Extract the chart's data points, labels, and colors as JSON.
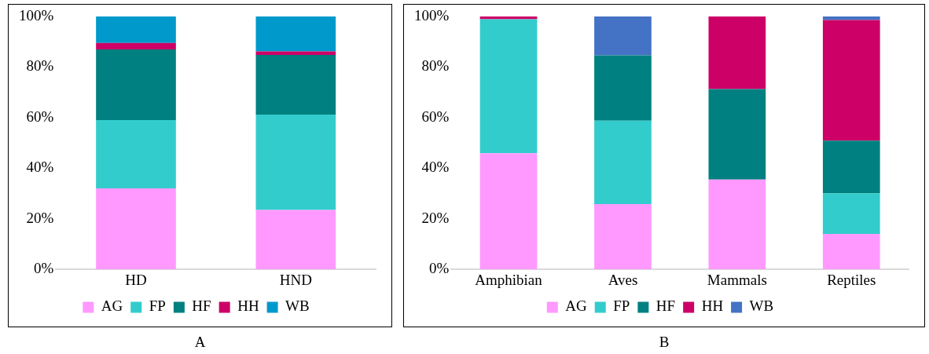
{
  "chart_data": [
    {
      "type": "bar",
      "stacked": true,
      "categories": [
        "HD",
        "HND"
      ],
      "series": [
        {
          "name": "AG",
          "color": "#ff99ff",
          "values": [
            32,
            23.5
          ]
        },
        {
          "name": "FP",
          "color": "#33cccc",
          "values": [
            27,
            37.7
          ]
        },
        {
          "name": "HF",
          "color": "#008080",
          "values": [
            28,
            23.6
          ]
        },
        {
          "name": "HH",
          "color": "#cc0066",
          "values": [
            2.5,
            1.4
          ]
        },
        {
          "name": "WB",
          "color": "#0099cc",
          "values": [
            10.5,
            13.8
          ]
        }
      ],
      "ylim": [
        0,
        100
      ],
      "yticks": [
        {
          "value": 0,
          "label": "0%"
        },
        {
          "value": 20,
          "label": "20%"
        },
        {
          "value": 40,
          "label": "40%"
        },
        {
          "value": 60,
          "label": "60%"
        },
        {
          "value": 80,
          "label": "80%"
        },
        {
          "value": 100,
          "label": "100%"
        }
      ],
      "grid": false,
      "legend": "bottom",
      "annotations": [
        "A"
      ]
    },
    {
      "type": "bar",
      "stacked": true,
      "categories": [
        "Amphibian",
        "Aves",
        "Mammals",
        "Reptiles"
      ],
      "series": [
        {
          "name": "AG",
          "color": "#ff99ff",
          "values": [
            45.9,
            25.8,
            35.5,
            14
          ]
        },
        {
          "name": "FP",
          "color": "#33cccc",
          "values": [
            53,
            33,
            0,
            16.1
          ]
        },
        {
          "name": "HF",
          "color": "#008080",
          "values": [
            0,
            25.8,
            35.8,
            20.8
          ]
        },
        {
          "name": "HH",
          "color": "#cc0066",
          "values": [
            1.1,
            0,
            28.7,
            47.7
          ]
        },
        {
          "name": "WB",
          "color": "#4472c4",
          "values": [
            0,
            15.4,
            0,
            1.4
          ]
        }
      ],
      "ylim": [
        0,
        100
      ],
      "yticks": [
        {
          "value": 0,
          "label": "0%"
        },
        {
          "value": 20,
          "label": "20%"
        },
        {
          "value": 40,
          "label": "40%"
        },
        {
          "value": 60,
          "label": "60%"
        },
        {
          "value": 80,
          "label": "80%"
        },
        {
          "value": 100,
          "label": "100%"
        }
      ],
      "grid": false,
      "legend": "bottom",
      "annotations": [
        "B"
      ]
    }
  ]
}
